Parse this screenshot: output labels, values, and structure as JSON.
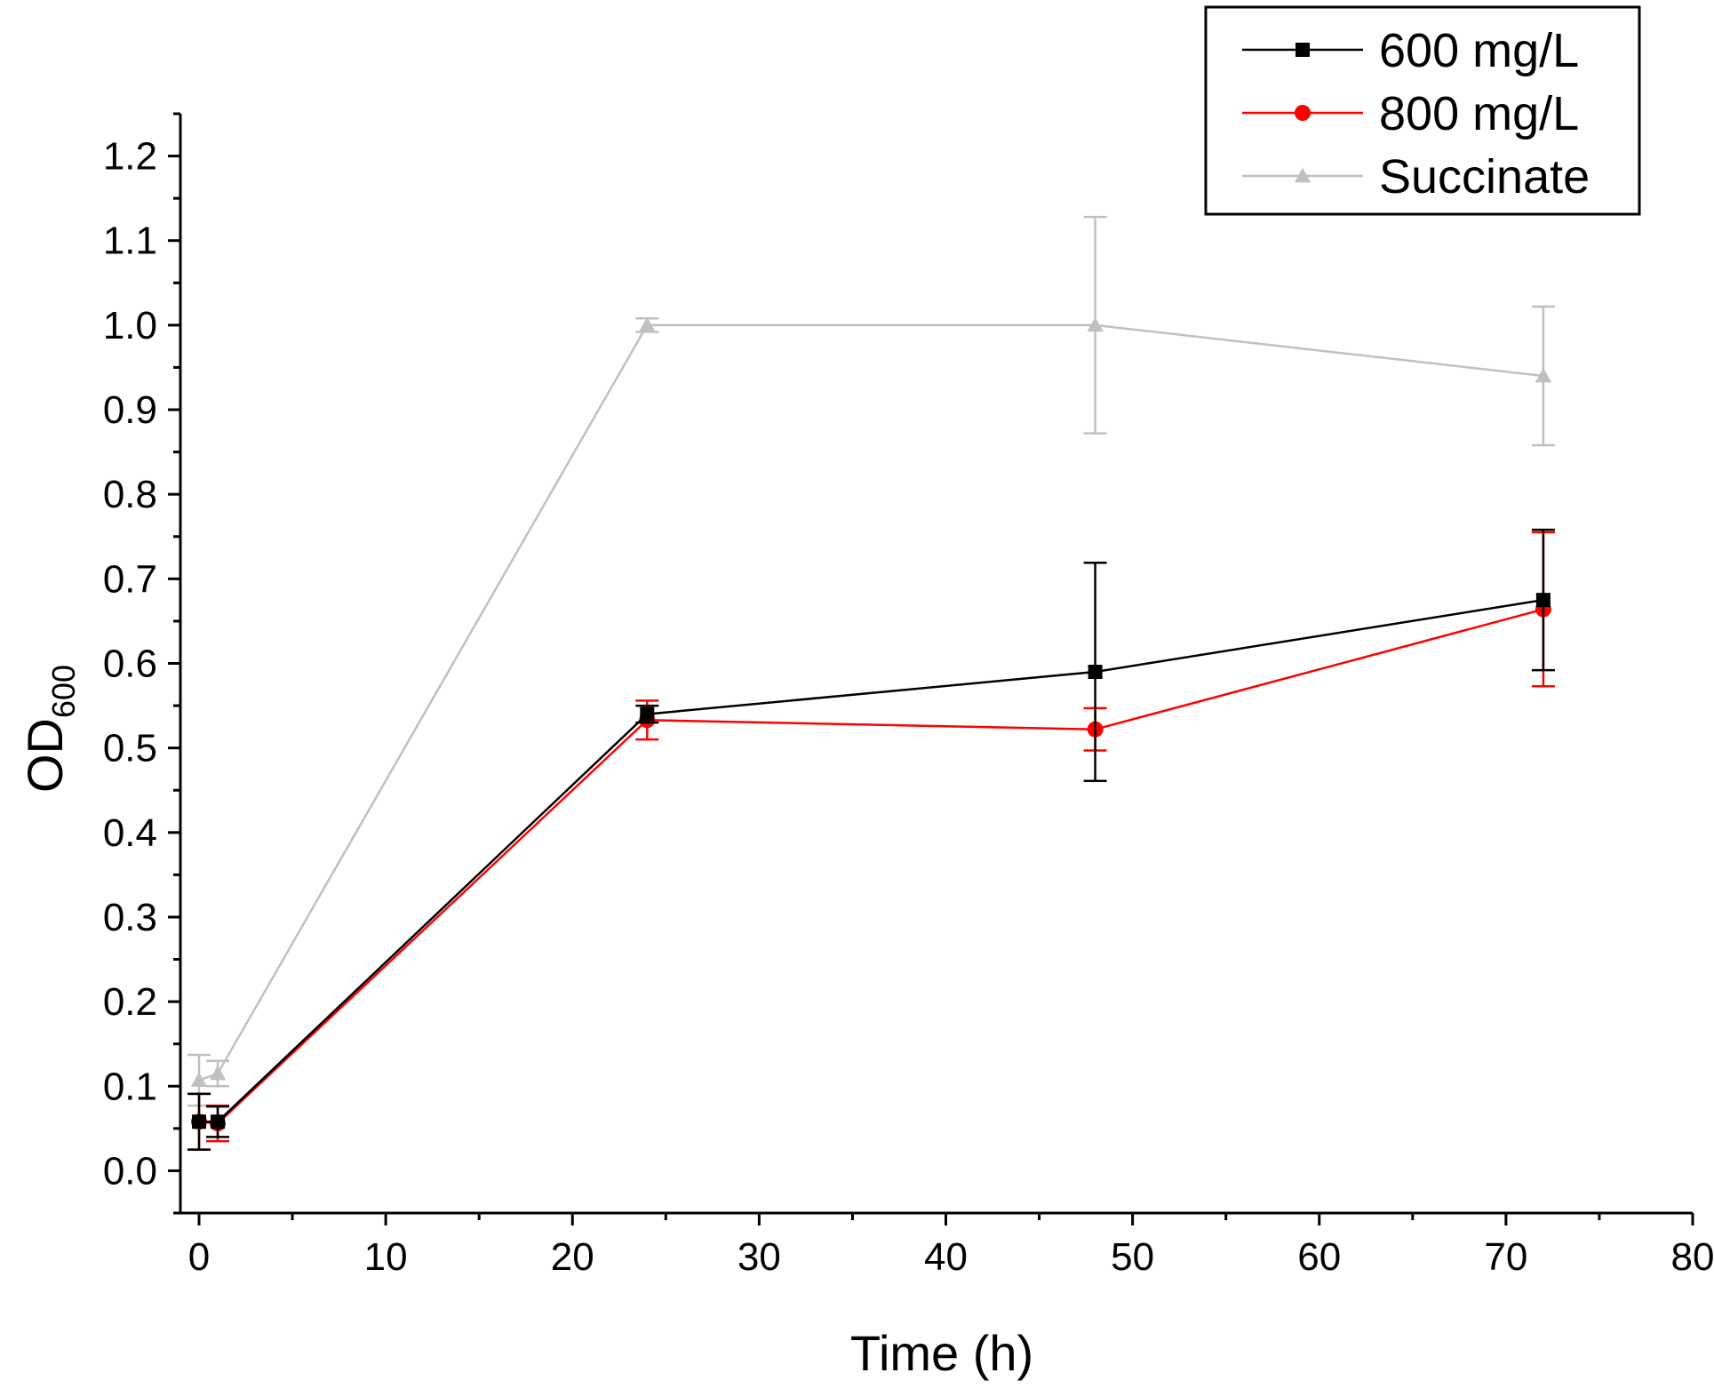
{
  "chart_data": {
    "type": "line",
    "title": "",
    "xlabel": "Time (h)",
    "ylabel_main": "OD",
    "ylabel_sub": "600",
    "xlim": [
      -1,
      80
    ],
    "ylim": [
      -0.05,
      1.25
    ],
    "x_ticks": [
      0,
      10,
      20,
      30,
      40,
      50,
      60,
      70,
      80
    ],
    "x_tick_labels": [
      "0",
      "10",
      "20",
      "30",
      "40",
      "50",
      "60",
      "70",
      "80"
    ],
    "y_ticks": [
      0.0,
      0.1,
      0.2,
      0.3,
      0.4,
      0.5,
      0.6,
      0.7,
      0.8,
      0.9,
      1.0,
      1.1,
      1.2
    ],
    "y_tick_labels": [
      "0.0",
      "0.1",
      "0.2",
      "0.3",
      "0.4",
      "0.5",
      "0.6",
      "0.7",
      "0.8",
      "0.9",
      "1.0",
      "1.1",
      "1.2"
    ],
    "grid": false,
    "legend_position": "top-right",
    "series": [
      {
        "name": "600 mg/L",
        "color": "#000000",
        "marker": "square",
        "x": [
          0,
          1,
          24,
          48,
          72
        ],
        "values": [
          0.058,
          0.058,
          0.54,
          0.59,
          0.675
        ],
        "errors": [
          0.033,
          0.018,
          0.01,
          0.129,
          0.083
        ]
      },
      {
        "name": "800 mg/L",
        "color": "#ff0000",
        "marker": "circle",
        "x": [
          0,
          1,
          24,
          48,
          72
        ],
        "values": [
          0.058,
          0.056,
          0.533,
          0.522,
          0.664
        ],
        "errors": [
          0.033,
          0.021,
          0.023,
          0.025,
          0.091
        ]
      },
      {
        "name": "Succinate",
        "color": "#c0c0c0",
        "marker": "triangle",
        "x": [
          0,
          1,
          24,
          48,
          72
        ],
        "values": [
          0.107,
          0.115,
          1.0,
          1.0,
          0.94
        ],
        "errors": [
          0.03,
          0.015,
          0.008,
          0.128,
          0.082
        ]
      }
    ]
  }
}
